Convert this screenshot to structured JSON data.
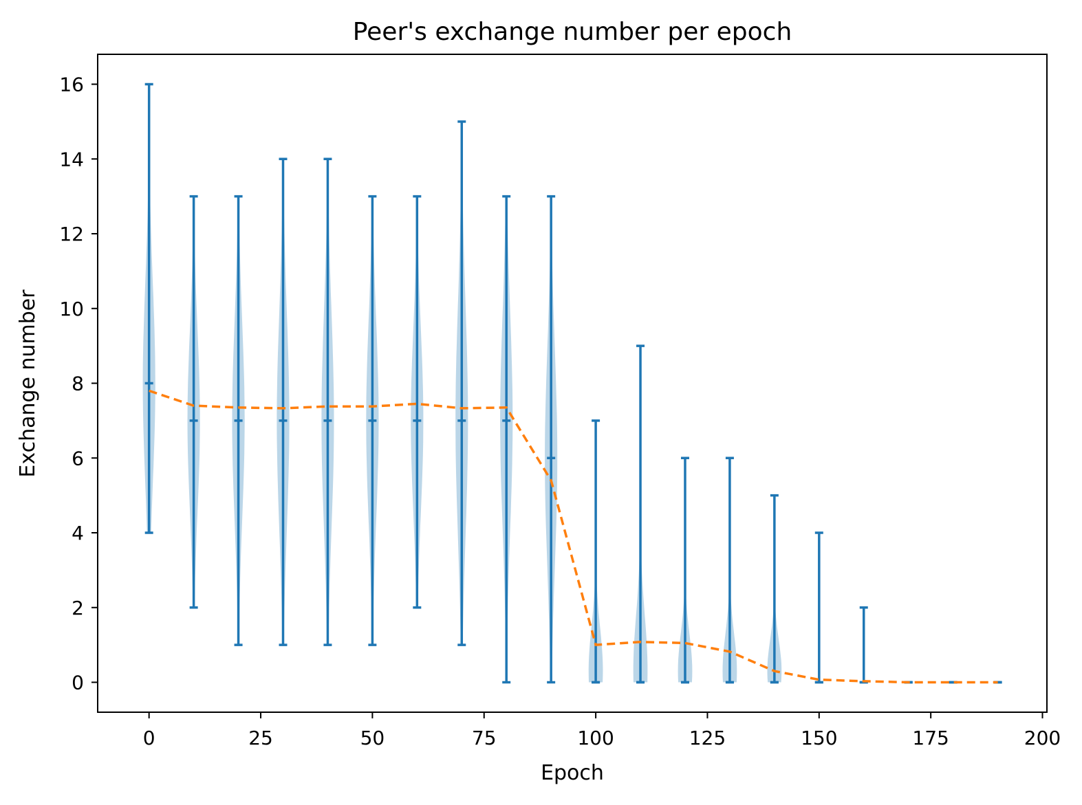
{
  "chart_data": {
    "type": "violin",
    "title": "Peer's exchange number per epoch",
    "xlabel": "Epoch",
    "ylabel": "Exchange number",
    "xlim": [
      -11.5,
      201
    ],
    "ylim": [
      -0.8,
      16.8
    ],
    "xticks": [
      0,
      25,
      50,
      75,
      100,
      125,
      150,
      175,
      200
    ],
    "yticks": [
      0,
      2,
      4,
      6,
      8,
      10,
      12,
      14,
      16
    ],
    "grid": false,
    "colors": {
      "violin_line": "#1f77b4",
      "violin_fill": "#1f77b4",
      "mean_line": "#ff7f0e"
    },
    "violins": [
      {
        "epoch": 0,
        "min": 4,
        "median": 8,
        "max": 16,
        "half_width": 1.4
      },
      {
        "epoch": 10,
        "min": 2,
        "median": 7,
        "max": 13,
        "half_width": 1.4
      },
      {
        "epoch": 20,
        "min": 1,
        "median": 7,
        "max": 13,
        "half_width": 1.4
      },
      {
        "epoch": 30,
        "min": 1,
        "median": 7,
        "max": 14,
        "half_width": 1.4
      },
      {
        "epoch": 40,
        "min": 1,
        "median": 7,
        "max": 14,
        "half_width": 1.4
      },
      {
        "epoch": 50,
        "min": 1,
        "median": 7,
        "max": 13,
        "half_width": 1.4
      },
      {
        "epoch": 60,
        "min": 2,
        "median": 7,
        "max": 13,
        "half_width": 1.4
      },
      {
        "epoch": 70,
        "min": 1,
        "median": 7,
        "max": 15,
        "half_width": 1.4
      },
      {
        "epoch": 80,
        "min": 0,
        "median": 7,
        "max": 13,
        "half_width": 1.4
      },
      {
        "epoch": 90,
        "min": 0,
        "median": 6,
        "max": 13,
        "half_width": 1.4
      },
      {
        "epoch": 100,
        "min": 0,
        "median": 0,
        "max": 7,
        "half_width": 1.6
      },
      {
        "epoch": 110,
        "min": 0,
        "median": 0,
        "max": 9,
        "half_width": 1.6
      },
      {
        "epoch": 120,
        "min": 0,
        "median": 0,
        "max": 6,
        "half_width": 1.6
      },
      {
        "epoch": 130,
        "min": 0,
        "median": 0,
        "max": 6,
        "half_width": 1.6
      },
      {
        "epoch": 140,
        "min": 0,
        "median": 0,
        "max": 5,
        "half_width": 1.6
      },
      {
        "epoch": 150,
        "min": 0,
        "median": 0,
        "max": 4,
        "half_width": 0
      },
      {
        "epoch": 160,
        "min": 0,
        "median": 0,
        "max": 2,
        "half_width": 0
      },
      {
        "epoch": 170,
        "min": 0,
        "median": 0,
        "max": 0,
        "half_width": 0
      },
      {
        "epoch": 180,
        "min": 0,
        "median": 0,
        "max": 0,
        "half_width": 0
      },
      {
        "epoch": 190,
        "min": 0,
        "median": 0,
        "max": 0,
        "half_width": 0
      }
    ],
    "mean_series": {
      "x": [
        0,
        10,
        20,
        30,
        40,
        50,
        60,
        70,
        80,
        90,
        100,
        110,
        120,
        130,
        140,
        150,
        160,
        170,
        180,
        190
      ],
      "y": [
        7.8,
        7.4,
        7.35,
        7.33,
        7.38,
        7.38,
        7.45,
        7.33,
        7.35,
        5.4,
        1.0,
        1.08,
        1.05,
        0.82,
        0.3,
        0.07,
        0.03,
        0.0,
        0.0,
        0.0
      ]
    }
  }
}
